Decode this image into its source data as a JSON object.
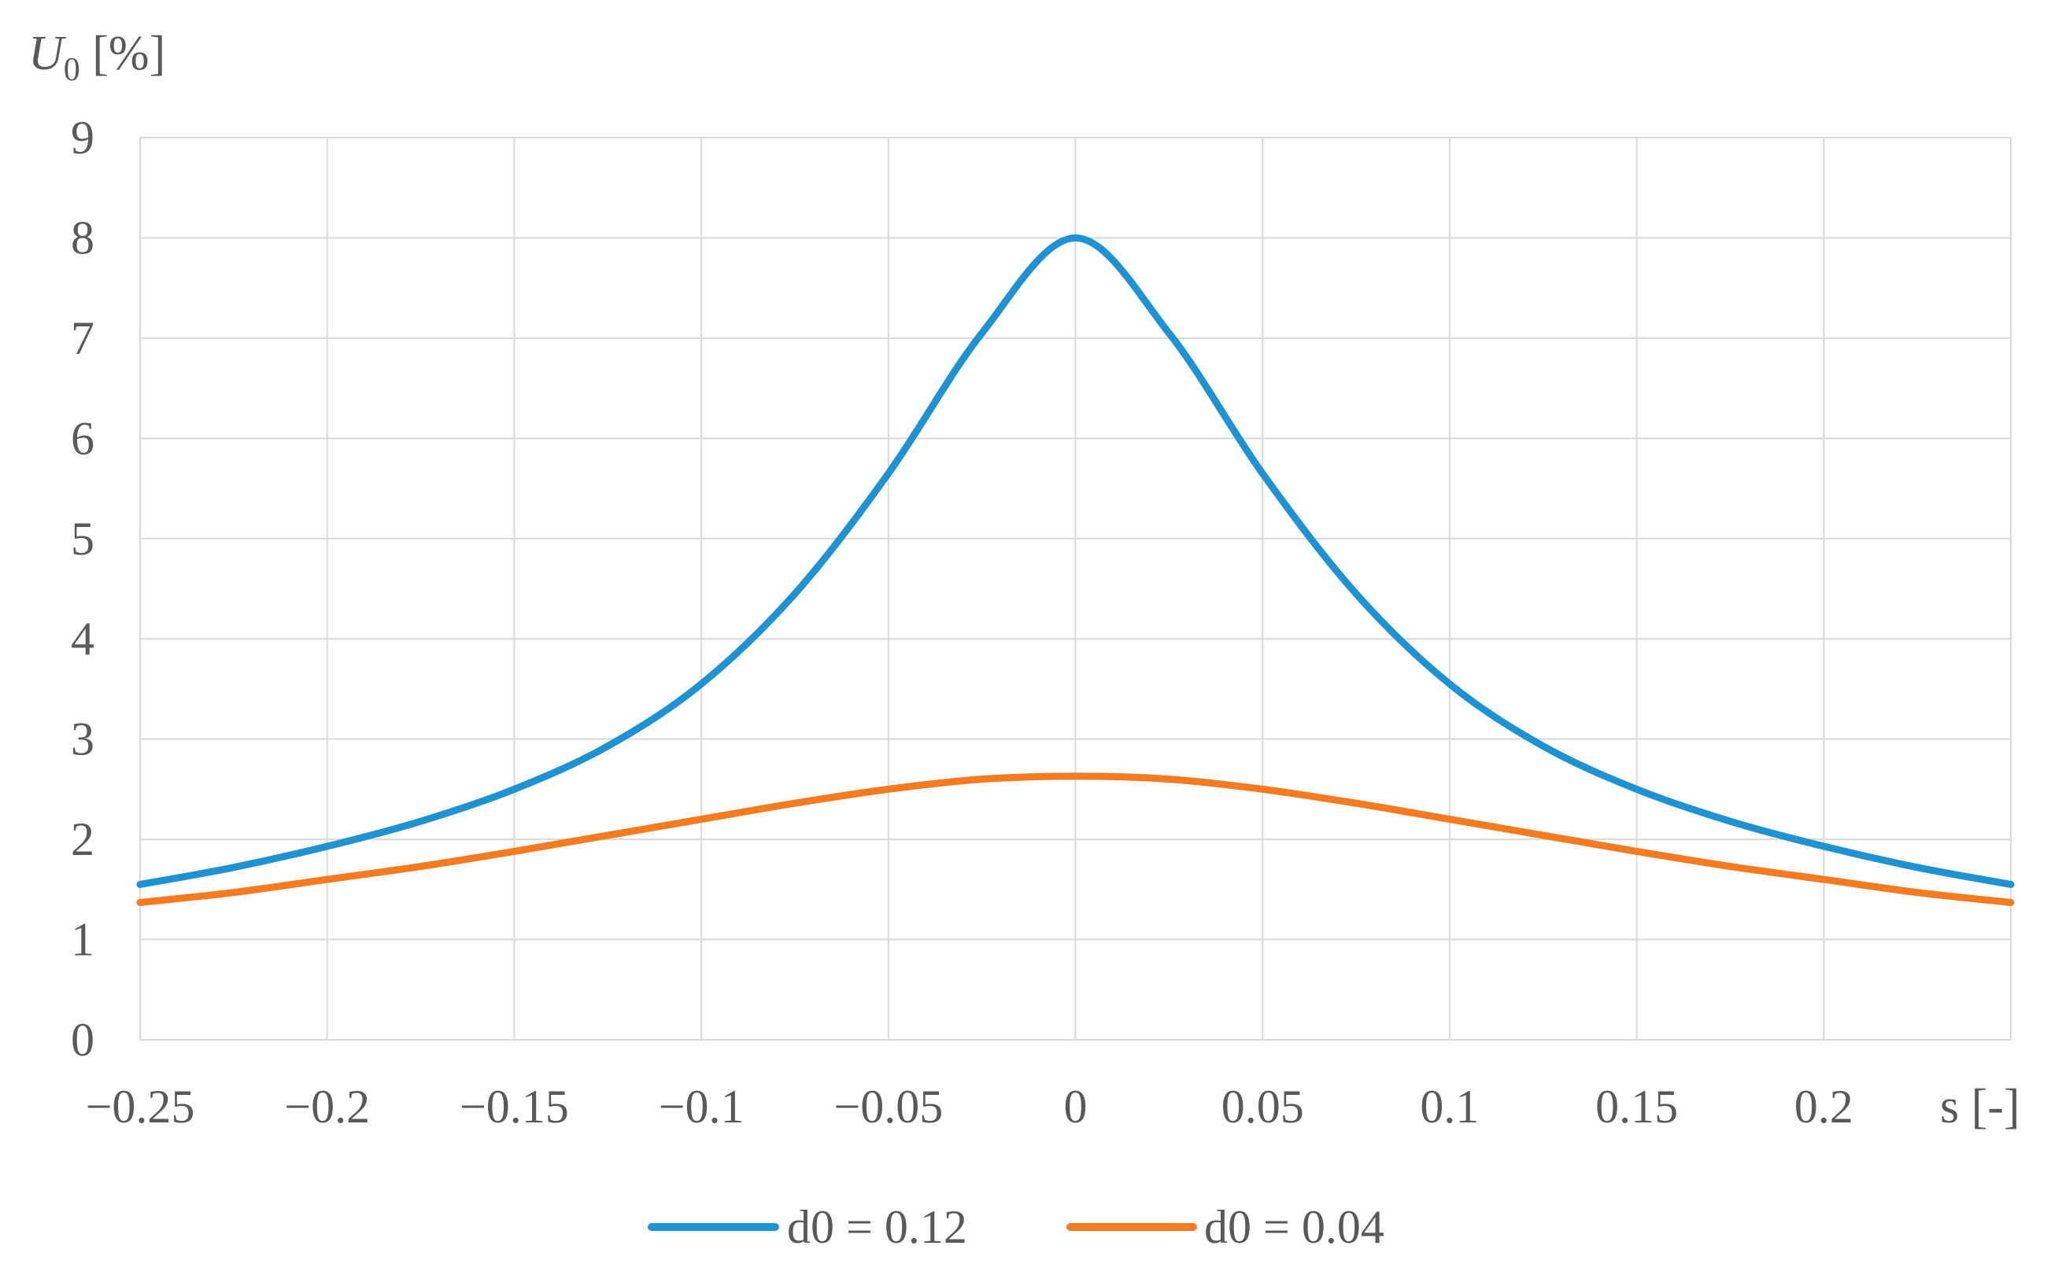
{
  "chart_data": {
    "type": "line",
    "ylabel_main": "U",
    "ylabel_sub": "0",
    "ylabel_unit": " [%]",
    "xlabel": "s [-]",
    "xlim": [
      -0.25,
      0.25
    ],
    "ylim": [
      0,
      9
    ],
    "grid": true,
    "legend_position": "bottom",
    "x_tick_labels": [
      "−0.25",
      "−0.2",
      "−0.15",
      "−0.1",
      "−0.05",
      "0",
      "0.05",
      "0.1",
      "0.15",
      "0.2"
    ],
    "x_ticks": [
      -0.25,
      -0.2,
      -0.15,
      -0.1,
      -0.05,
      0,
      0.05,
      0.1,
      0.15,
      0.2
    ],
    "y_ticks": [
      0,
      1,
      2,
      3,
      4,
      5,
      6,
      7,
      8,
      9
    ],
    "y_tick_labels": [
      "0",
      "1",
      "2",
      "3",
      "4",
      "5",
      "6",
      "7",
      "8",
      "9"
    ],
    "x": [
      -0.25,
      -0.225,
      -0.2,
      -0.175,
      -0.15,
      -0.125,
      -0.1,
      -0.075,
      -0.05,
      -0.025,
      0,
      0.025,
      0.05,
      0.075,
      0.1,
      0.125,
      0.15,
      0.175,
      0.2,
      0.225,
      0.25
    ],
    "series": [
      {
        "name": "d0 = 0.12",
        "color": "#1f93d2",
        "values": [
          1.55,
          1.72,
          1.93,
          2.18,
          2.5,
          2.93,
          3.55,
          4.45,
          5.65,
          7.05,
          8.0,
          7.05,
          5.65,
          4.45,
          3.55,
          2.93,
          2.5,
          2.18,
          1.93,
          1.72,
          1.55
        ]
      },
      {
        "name": "d0 = 0.04",
        "color": "#f47b20",
        "values": [
          1.37,
          1.47,
          1.6,
          1.73,
          1.88,
          2.04,
          2.2,
          2.36,
          2.5,
          2.6,
          2.63,
          2.6,
          2.5,
          2.36,
          2.2,
          2.04,
          1.88,
          1.73,
          1.6,
          1.47,
          1.37
        ]
      }
    ]
  }
}
